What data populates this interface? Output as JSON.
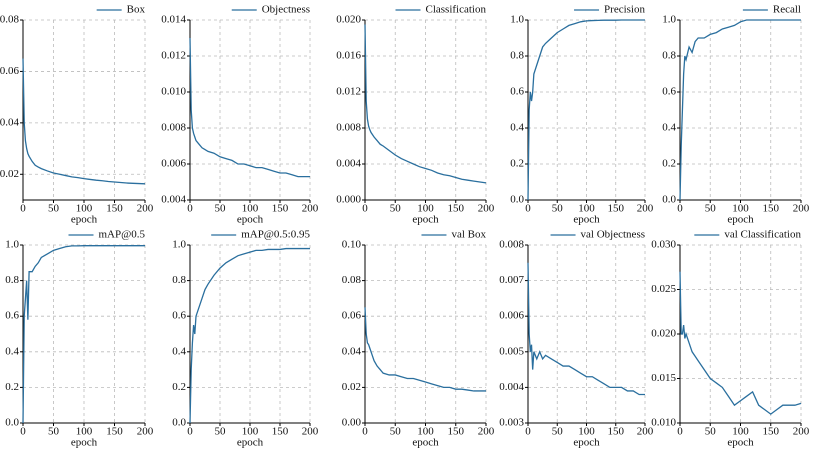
{
  "chart_data": [
    {
      "type": "line",
      "xlabel": "epoch",
      "grid": true,
      "legend": "top-right",
      "xlim": [
        0,
        200
      ],
      "xticks": [
        0,
        50,
        100,
        150,
        200
      ],
      "ylim": [
        0.01,
        0.08
      ],
      "yticks": [
        0.02,
        0.04,
        0.06,
        0.08
      ],
      "x": [
        0,
        2,
        4,
        6,
        8,
        10,
        15,
        20,
        25,
        30,
        40,
        50,
        60,
        70,
        80,
        90,
        100,
        110,
        120,
        130,
        140,
        150,
        160,
        170,
        180,
        190,
        200
      ],
      "series": [
        {
          "name": "Box",
          "color": "#2a6f9e",
          "values": [
            0.065,
            0.04,
            0.033,
            0.03,
            0.028,
            0.027,
            0.025,
            0.0235,
            0.0228,
            0.0222,
            0.0213,
            0.0205,
            0.02,
            0.0195,
            0.019,
            0.0187,
            0.0183,
            0.018,
            0.0177,
            0.0175,
            0.0172,
            0.017,
            0.0168,
            0.0166,
            0.0165,
            0.0164,
            0.0163
          ]
        }
      ]
    },
    {
      "type": "line",
      "xlabel": "epoch",
      "grid": true,
      "legend": "top-right",
      "xlim": [
        0,
        200
      ],
      "xticks": [
        0,
        50,
        100,
        150,
        200
      ],
      "ylim": [
        0.004,
        0.014
      ],
      "yticks": [
        0.004,
        0.006,
        0.008,
        {
          "value": 0.01,
          "label": "0.010"
        },
        0.012,
        0.014
      ],
      "x": [
        0,
        2,
        4,
        6,
        8,
        10,
        15,
        20,
        25,
        30,
        40,
        50,
        60,
        70,
        80,
        90,
        100,
        110,
        120,
        130,
        140,
        150,
        160,
        170,
        180,
        190,
        200
      ],
      "series": [
        {
          "name": "Objectness",
          "color": "#2a6f9e",
          "values": [
            0.013,
            0.009,
            0.008,
            0.0077,
            0.0075,
            0.0073,
            0.0071,
            0.0069,
            0.0068,
            0.0067,
            0.0066,
            0.0064,
            0.0063,
            0.0062,
            0.006,
            0.006,
            0.0059,
            0.0058,
            0.0058,
            0.0057,
            0.0056,
            0.0055,
            0.0055,
            0.0054,
            0.0053,
            0.0053,
            0.0053
          ]
        }
      ]
    },
    {
      "type": "line",
      "xlabel": "epoch",
      "grid": true,
      "legend": "top-right",
      "xlim": [
        0,
        200
      ],
      "xticks": [
        0,
        50,
        100,
        150,
        200
      ],
      "ylim": [
        0,
        0.02
      ],
      "yticks": [
        {
          "value": 0,
          "label": "0.000"
        },
        0.004,
        0.008,
        0.012,
        0.016,
        {
          "value": 0.02,
          "label": "0.020"
        }
      ],
      "x": [
        0,
        2,
        4,
        6,
        8,
        10,
        15,
        20,
        25,
        30,
        40,
        50,
        60,
        70,
        80,
        90,
        100,
        110,
        120,
        130,
        140,
        150,
        160,
        170,
        180,
        190,
        200
      ],
      "series": [
        {
          "name": "Classification",
          "color": "#2a6f9e",
          "values": [
            0.0195,
            0.011,
            0.009,
            0.0082,
            0.0078,
            0.0075,
            0.007,
            0.0066,
            0.0062,
            0.006,
            0.0055,
            0.005,
            0.0046,
            0.0043,
            0.004,
            0.0037,
            0.0035,
            0.0033,
            0.003,
            0.0028,
            0.0027,
            0.0025,
            0.0023,
            0.0022,
            0.0021,
            0.002,
            0.0019
          ]
        }
      ]
    },
    {
      "type": "line",
      "xlabel": "epoch",
      "grid": true,
      "legend": "top-right",
      "xlim": [
        0,
        200
      ],
      "xticks": [
        0,
        50,
        100,
        150,
        200
      ],
      "ylim": [
        0,
        1
      ],
      "yticks": [
        {
          "value": 0,
          "label": "0.0"
        },
        0.2,
        0.4,
        0.6,
        0.8,
        {
          "value": 1,
          "label": "1.0"
        }
      ],
      "x": [
        0,
        2,
        4,
        6,
        8,
        10,
        15,
        20,
        25,
        30,
        40,
        50,
        60,
        70,
        80,
        90,
        100,
        110,
        120,
        130,
        140,
        150,
        160,
        170,
        180,
        190,
        200
      ],
      "series": [
        {
          "name": "Precision",
          "color": "#2a6f9e",
          "values": [
            0,
            0.5,
            0.6,
            0.55,
            0.6,
            0.7,
            0.75,
            0.8,
            0.85,
            0.87,
            0.9,
            0.93,
            0.95,
            0.97,
            0.98,
            0.99,
            0.995,
            0.997,
            0.998,
            0.999,
            0.999,
            0.999,
            1,
            1,
            1,
            1,
            1
          ]
        }
      ]
    },
    {
      "type": "line",
      "xlabel": "epoch",
      "grid": true,
      "legend": "top-right",
      "xlim": [
        0,
        200
      ],
      "xticks": [
        0,
        50,
        100,
        150,
        200
      ],
      "ylim": [
        0,
        1
      ],
      "yticks": [
        {
          "value": 0,
          "label": "0.0"
        },
        0.2,
        0.4,
        0.6,
        0.8,
        {
          "value": 1,
          "label": "1.0"
        }
      ],
      "x": [
        0,
        2,
        4,
        6,
        8,
        10,
        15,
        20,
        25,
        30,
        40,
        50,
        60,
        70,
        80,
        90,
        100,
        110,
        120,
        130,
        140,
        150,
        160,
        170,
        180,
        190,
        200
      ],
      "series": [
        {
          "name": "Recall",
          "color": "#2a6f9e",
          "values": [
            0,
            0.3,
            0.5,
            0.7,
            0.8,
            0.78,
            0.85,
            0.82,
            0.88,
            0.9,
            0.9,
            0.92,
            0.93,
            0.95,
            0.96,
            0.97,
            0.99,
            1,
            1,
            1,
            1,
            1,
            1,
            1,
            1,
            1,
            1
          ]
        }
      ]
    },
    {
      "type": "line",
      "xlabel": "epoch",
      "grid": true,
      "legend": "top-right",
      "xlim": [
        0,
        200
      ],
      "xticks": [
        0,
        50,
        100,
        150,
        200
      ],
      "ylim": [
        0,
        1
      ],
      "yticks": [
        {
          "value": 0,
          "label": "0.0"
        },
        0.2,
        0.4,
        0.6,
        0.8,
        {
          "value": 1,
          "label": "1.0"
        }
      ],
      "x": [
        0,
        2,
        4,
        6,
        8,
        10,
        15,
        20,
        25,
        30,
        40,
        50,
        60,
        70,
        80,
        90,
        100,
        110,
        120,
        130,
        140,
        150,
        160,
        170,
        180,
        190,
        200
      ],
      "series": [
        {
          "name": "mAP@0.5",
          "color": "#2a6f9e",
          "values": [
            0,
            0.6,
            0.7,
            0.8,
            0.58,
            0.85,
            0.85,
            0.88,
            0.9,
            0.93,
            0.95,
            0.97,
            0.98,
            0.99,
            0.995,
            0.995,
            0.996,
            0.996,
            0.996,
            0.996,
            0.996,
            0.996,
            0.996,
            0.996,
            0.996,
            0.996,
            0.996
          ]
        }
      ]
    },
    {
      "type": "line",
      "xlabel": "epoch",
      "grid": true,
      "legend": "top-right",
      "xlim": [
        0,
        200
      ],
      "xticks": [
        0,
        50,
        100,
        150,
        200
      ],
      "ylim": [
        0,
        1
      ],
      "yticks": [
        {
          "value": 0,
          "label": "0.0"
        },
        0.2,
        0.4,
        0.6,
        0.8,
        {
          "value": 1,
          "label": "1.0"
        }
      ],
      "x": [
        0,
        2,
        4,
        6,
        8,
        10,
        15,
        20,
        25,
        30,
        40,
        50,
        60,
        70,
        80,
        90,
        100,
        110,
        120,
        130,
        140,
        150,
        160,
        170,
        180,
        190,
        200
      ],
      "series": [
        {
          "name": "mAP@0.5:0.95",
          "color": "#2a6f9e",
          "values": [
            0,
            0.3,
            0.45,
            0.55,
            0.5,
            0.6,
            0.65,
            0.7,
            0.75,
            0.78,
            0.83,
            0.87,
            0.9,
            0.92,
            0.94,
            0.95,
            0.96,
            0.97,
            0.97,
            0.975,
            0.975,
            0.975,
            0.98,
            0.98,
            0.98,
            0.98,
            0.98
          ]
        }
      ]
    },
    {
      "type": "line",
      "xlabel": "epoch",
      "grid": true,
      "legend": "top-right",
      "xlim": [
        0,
        200
      ],
      "xticks": [
        0,
        50,
        100,
        150,
        200
      ],
      "ylim": [
        0,
        0.1
      ],
      "yticks": [
        {
          "value": 0,
          "label": "0.00"
        },
        0.02,
        0.04,
        0.06,
        0.08,
        {
          "value": 0.1,
          "label": "0.10"
        }
      ],
      "x": [
        0,
        2,
        4,
        6,
        8,
        10,
        15,
        20,
        25,
        30,
        40,
        50,
        60,
        70,
        80,
        90,
        100,
        110,
        120,
        130,
        140,
        150,
        160,
        170,
        180,
        190,
        200
      ],
      "series": [
        {
          "name": "val Box",
          "color": "#2a6f9e",
          "values": [
            0.065,
            0.05,
            0.045,
            0.044,
            0.042,
            0.04,
            0.035,
            0.032,
            0.03,
            0.028,
            0.027,
            0.027,
            0.026,
            0.025,
            0.025,
            0.024,
            0.023,
            0.022,
            0.021,
            0.02,
            0.02,
            0.019,
            0.019,
            0.0185,
            0.018,
            0.018,
            0.018
          ]
        }
      ]
    },
    {
      "type": "line",
      "xlabel": "epoch",
      "grid": true,
      "legend": "top-right",
      "xlim": [
        0,
        200
      ],
      "xticks": [
        0,
        50,
        100,
        150,
        200
      ],
      "ylim": [
        0.003,
        0.008
      ],
      "yticks": [
        0.003,
        0.004,
        0.005,
        0.006,
        0.007,
        0.008
      ],
      "x": [
        0,
        2,
        4,
        6,
        8,
        10,
        15,
        20,
        25,
        30,
        40,
        50,
        60,
        70,
        80,
        90,
        100,
        110,
        120,
        130,
        140,
        150,
        160,
        170,
        180,
        190,
        200
      ],
      "series": [
        {
          "name": "val Objectness",
          "color": "#2a6f9e",
          "values": [
            0.0075,
            0.0055,
            0.005,
            0.0052,
            0.0045,
            0.005,
            0.0048,
            0.005,
            0.0048,
            0.0049,
            0.0048,
            0.0047,
            0.0046,
            0.0046,
            0.0045,
            0.0044,
            0.0043,
            0.0043,
            0.0042,
            0.0041,
            0.004,
            0.004,
            0.004,
            0.0039,
            0.0039,
            0.0038,
            0.0038
          ]
        }
      ]
    },
    {
      "type": "line",
      "xlabel": "epoch",
      "grid": true,
      "legend": "top-right",
      "xlim": [
        0,
        200
      ],
      "xticks": [
        0,
        50,
        100,
        150,
        200
      ],
      "ylim": [
        0.01,
        0.03
      ],
      "yticks": [
        {
          "value": 0.01,
          "label": "0.010"
        },
        0.015,
        {
          "value": 0.02,
          "label": "0.020"
        },
        0.025,
        {
          "value": 0.03,
          "label": "0.030"
        }
      ],
      "x": [
        0,
        2,
        4,
        6,
        8,
        10,
        15,
        20,
        25,
        30,
        40,
        50,
        60,
        70,
        80,
        90,
        100,
        110,
        120,
        130,
        140,
        150,
        160,
        170,
        180,
        190,
        200
      ],
      "series": [
        {
          "name": "val Classification",
          "color": "#2a6f9e",
          "values": [
            0.027,
            0.02,
            0.02,
            0.021,
            0.0195,
            0.02,
            0.019,
            0.018,
            0.0175,
            0.017,
            0.016,
            0.015,
            0.0145,
            0.014,
            0.013,
            0.012,
            0.0125,
            0.013,
            0.0135,
            0.012,
            0.0115,
            0.011,
            0.0115,
            0.012,
            0.012,
            0.012,
            0.0122
          ]
        }
      ]
    }
  ]
}
